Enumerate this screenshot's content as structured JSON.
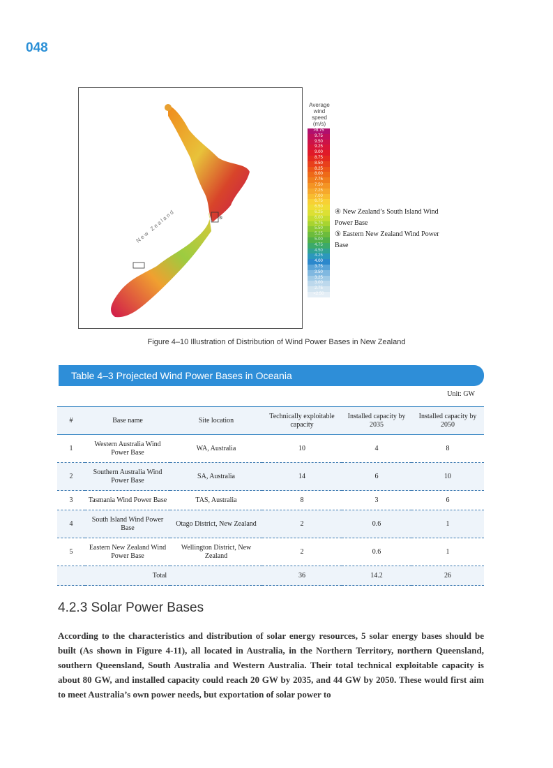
{
  "page_number": "048",
  "figure": {
    "legend_title": [
      "Average",
      "wind",
      "speed",
      "(m/s)"
    ],
    "legend_values": [
      ">9.75",
      "9.75",
      "9.50",
      "9.25",
      "9.00",
      "8.75",
      "8.50",
      "8.25",
      "8.00",
      "7.75",
      "7.50",
      "7.25",
      "7.00",
      "6.75",
      "6.50",
      "6.25",
      "6.00",
      "5.75",
      "5.50",
      "5.25",
      "5.00",
      "4.75",
      "4.50",
      "4.25",
      "4.00",
      "3.75",
      "3.50",
      "3.25",
      "3.00",
      "2.75",
      "<2.50"
    ],
    "legend_colors": [
      "#b0106e",
      "#c0105a",
      "#cc1248",
      "#d81438",
      "#e01a28",
      "#e42a1e",
      "#e8401c",
      "#ec5618",
      "#ee6a18",
      "#f07e1c",
      "#f49424",
      "#f6a82c",
      "#f8bc30",
      "#f8d034",
      "#f0dc34",
      "#dce034",
      "#c4dc30",
      "#a8d430",
      "#88c834",
      "#6cbc3c",
      "#50b048",
      "#3caa6a",
      "#30a294",
      "#2c98bc",
      "#2c88cc",
      "#5aa4d8",
      "#80b8e0",
      "#a0cae6",
      "#bcd8ec",
      "#d2e4f0",
      "#e4eef6"
    ],
    "map_label": "New Zealand",
    "marker": "⑤",
    "callouts": [
      "④ New Zealand’s South Island Wind Power Base",
      "⑤ Eastern New Zealand Wind Power Base"
    ],
    "caption": "Figure 4–10   Illustration of Distribution of Wind Power Bases in New Zealand"
  },
  "table": {
    "title": "Table 4–3   Projected Wind Power Bases in Oceania",
    "unit": "Unit: GW",
    "headers": [
      "#",
      "Base name",
      "Site location",
      "Technically exploitable capacity",
      "Installed capacity by 2035",
      "Installed capacity by 2050"
    ],
    "rows": [
      [
        "1",
        "Western Australia Wind Power Base",
        "WA, Australia",
        "10",
        "4",
        "8"
      ],
      [
        "2",
        "Southern Australia Wind Power Base",
        "SA, Australia",
        "14",
        "6",
        "10"
      ],
      [
        "3",
        "Tasmania Wind Power Base",
        "TAS, Australia",
        "8",
        "3",
        "6"
      ],
      [
        "4",
        "South Island Wind Power Base",
        "Otago District, New Zealand",
        "2",
        "0.6",
        "1"
      ],
      [
        "5",
        "Eastern New Zealand Wind Power Base",
        "Wellington District, New Zealand",
        "2",
        "0.6",
        "1"
      ]
    ],
    "total": [
      "Total",
      "36",
      "14.2",
      "26"
    ]
  },
  "section": {
    "heading": "4.2.3   Solar Power Bases",
    "body": "According to the characteristics and distribution of solar energy resources, 5 solar energy bases should be built (As shown in Figure 4-11), all located in Australia, in the Northern Territory, northern Queensland, southern Queensland, South Australia and Western Australia. Their total technical exploitable capacity is about 80 GW, and installed capacity could reach 20 GW by 2035, and 44 GW by 2050. These would first aim to meet Australia’s own power needs, but exportation of solar power to"
  }
}
